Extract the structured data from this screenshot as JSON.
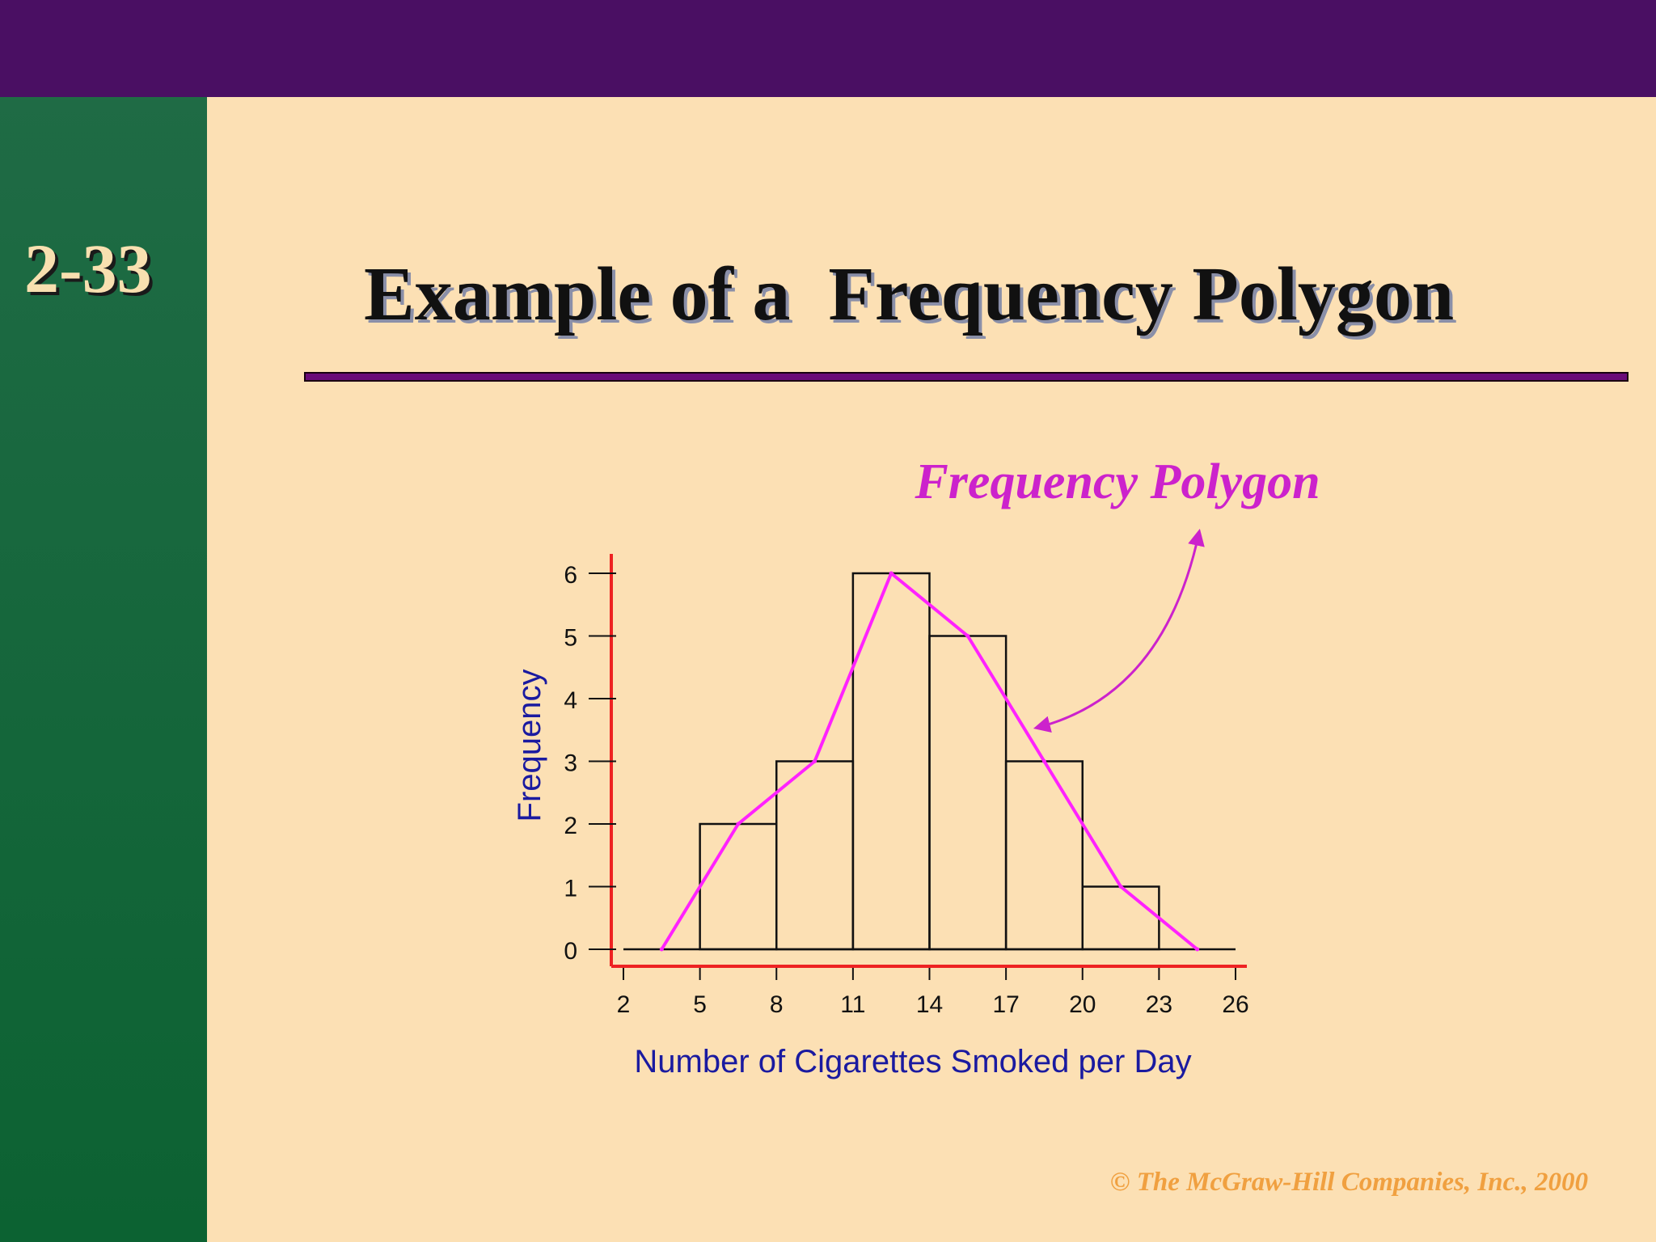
{
  "slide": {
    "number": "2-33",
    "title": "Example of a  Frequency Polygon",
    "copyright": "© The McGraw-Hill Companies, Inc., 2000"
  },
  "colors": {
    "top_band": "#4a0f63",
    "side_band": "#1f6b45",
    "background": "#fce0b4",
    "polygon": "#ff22ff",
    "annotation": "#cc22cc",
    "axis": "#ee2222",
    "axis_label": "#1a1aa0",
    "copyright": "#f0a040"
  },
  "chart_data": {
    "type": "bar",
    "annotation": "Frequency Polygon",
    "xlabel": "Number of Cigarettes Smoked per Day",
    "ylabel": "Frequency",
    "x_ticks": [
      2,
      5,
      8,
      11,
      14,
      17,
      20,
      23,
      26
    ],
    "y_ticks": [
      0,
      1,
      2,
      3,
      4,
      5,
      6
    ],
    "xlim": [
      2,
      26
    ],
    "ylim": [
      0,
      6
    ],
    "bins": [
      {
        "start": 2,
        "end": 5,
        "value": 0
      },
      {
        "start": 5,
        "end": 8,
        "value": 2
      },
      {
        "start": 8,
        "end": 11,
        "value": 3
      },
      {
        "start": 11,
        "end": 14,
        "value": 6
      },
      {
        "start": 14,
        "end": 17,
        "value": 5
      },
      {
        "start": 17,
        "end": 20,
        "value": 3
      },
      {
        "start": 20,
        "end": 23,
        "value": 1
      },
      {
        "start": 23,
        "end": 26,
        "value": 0
      }
    ],
    "polygon": {
      "name": "Frequency Polygon",
      "points": [
        [
          3.5,
          0
        ],
        [
          6.5,
          2
        ],
        [
          9.5,
          3
        ],
        [
          12.5,
          6
        ],
        [
          15.5,
          5
        ],
        [
          18.5,
          3
        ],
        [
          21.5,
          1
        ],
        [
          24.5,
          0
        ]
      ]
    },
    "grid": false,
    "legend": "none"
  }
}
